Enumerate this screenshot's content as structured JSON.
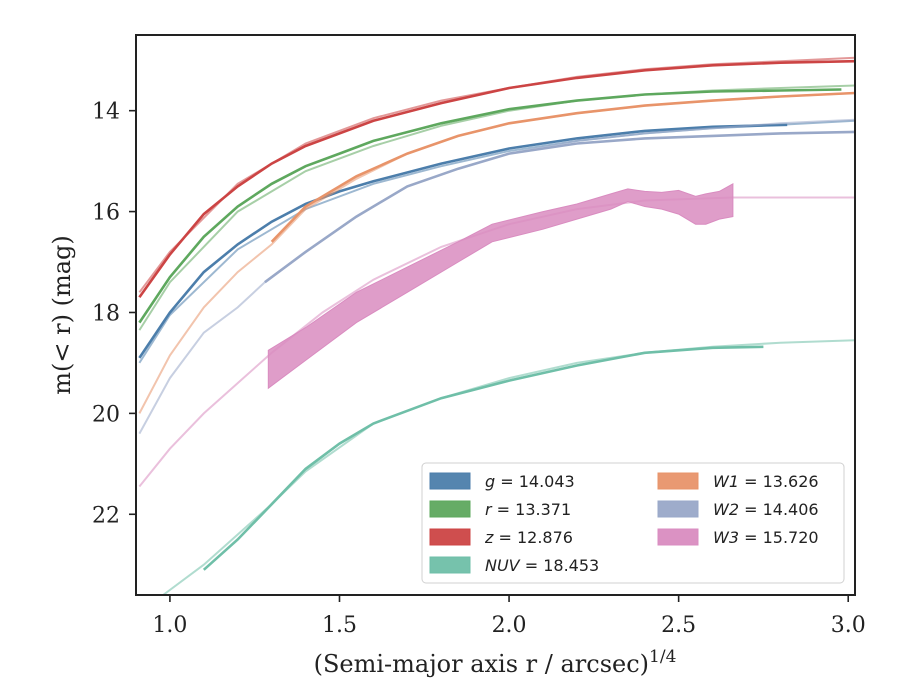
{
  "chart_data": {
    "type": "line",
    "xlabel": "(Semi-major axis r / arcsec)",
    "xlabel_sup": "1/4",
    "ylabel": "m(< r) (mag)",
    "xlim": [
      0.9,
      3.02
    ],
    "ylim": [
      23.6,
      12.5
    ],
    "y_inverted": true,
    "xticks": [
      "1.0",
      "1.5",
      "2.0",
      "2.5",
      "3.0"
    ],
    "xtick_values": [
      1.0,
      1.5,
      2.0,
      2.5,
      3.0
    ],
    "yticks": [
      "14",
      "16",
      "18",
      "20",
      "22"
    ],
    "ytick_values": [
      14,
      16,
      18,
      20,
      22
    ],
    "grid": false,
    "legend_placement": "lower-right",
    "series": [
      {
        "name": "g = 14.043",
        "color": "#4c7eab",
        "kind": "line",
        "data_x": [
          0.91,
          1.0,
          1.1,
          1.2,
          1.3,
          1.4,
          1.5,
          1.6,
          1.8,
          2.0,
          2.2,
          2.4,
          2.6,
          2.82
        ],
        "data_y": [
          18.9,
          18.0,
          17.2,
          16.65,
          16.2,
          15.85,
          15.6,
          15.4,
          15.05,
          14.75,
          14.55,
          14.4,
          14.32,
          14.28
        ],
        "model_x": [
          0.91,
          1.0,
          1.2,
          1.4,
          1.6,
          1.8,
          2.0,
          2.2,
          2.4,
          2.6,
          2.8,
          3.02
        ],
        "model_y": [
          19.0,
          18.05,
          16.75,
          15.95,
          15.45,
          15.1,
          14.8,
          14.6,
          14.45,
          14.35,
          14.28,
          14.2
        ]
      },
      {
        "name": "r = 13.371",
        "color": "#5ea85e",
        "kind": "line",
        "data_x": [
          0.91,
          1.0,
          1.1,
          1.2,
          1.3,
          1.4,
          1.5,
          1.6,
          1.8,
          2.0,
          2.2,
          2.4,
          2.6,
          2.8,
          2.98
        ],
        "data_y": [
          18.2,
          17.3,
          16.5,
          15.9,
          15.45,
          15.1,
          14.85,
          14.6,
          14.25,
          13.97,
          13.8,
          13.68,
          13.62,
          13.6,
          13.58
        ],
        "model_x": [
          0.91,
          1.0,
          1.2,
          1.4,
          1.6,
          1.8,
          2.0,
          2.2,
          2.4,
          2.6,
          2.8,
          3.02
        ],
        "model_y": [
          18.35,
          17.4,
          16.0,
          15.2,
          14.7,
          14.3,
          14.0,
          13.8,
          13.68,
          13.6,
          13.55,
          13.5
        ]
      },
      {
        "name": "z = 12.876",
        "color": "#cc4444",
        "kind": "line",
        "data_x": [
          0.91,
          1.0,
          1.1,
          1.2,
          1.3,
          1.4,
          1.5,
          1.6,
          1.8,
          2.0,
          2.2,
          2.4,
          2.6,
          2.8,
          3.02
        ],
        "data_y": [
          17.7,
          16.85,
          16.05,
          15.5,
          15.05,
          14.7,
          14.45,
          14.2,
          13.85,
          13.55,
          13.35,
          13.2,
          13.1,
          13.05,
          13.02
        ],
        "model_x": [
          0.91,
          1.0,
          1.2,
          1.4,
          1.6,
          1.8,
          2.0,
          2.2,
          2.4,
          2.6,
          2.8,
          3.02
        ],
        "model_y": [
          17.6,
          16.8,
          15.45,
          14.65,
          14.15,
          13.8,
          13.55,
          13.33,
          13.18,
          13.08,
          13.02,
          12.95
        ]
      },
      {
        "name": "NUV = 18.453",
        "color": "#6fbfa8",
        "kind": "line",
        "data_x": [
          1.1,
          1.2,
          1.3,
          1.4,
          1.5,
          1.6,
          1.8,
          2.0,
          2.2,
          2.4,
          2.6,
          2.75
        ],
        "data_y": [
          23.1,
          22.5,
          21.8,
          21.1,
          20.6,
          20.2,
          19.7,
          19.35,
          19.05,
          18.8,
          18.7,
          18.68
        ],
        "model_x": [
          0.98,
          1.1,
          1.2,
          1.3,
          1.4,
          1.6,
          1.8,
          2.0,
          2.2,
          2.4,
          2.6,
          2.8,
          3.02
        ],
        "model_y": [
          23.6,
          23.0,
          22.4,
          21.8,
          21.15,
          20.2,
          19.7,
          19.3,
          19.0,
          18.8,
          18.68,
          18.6,
          18.55
        ]
      },
      {
        "name": "W1 = 13.626",
        "color": "#e8946a",
        "kind": "line",
        "data_x": [
          1.3,
          1.4,
          1.55,
          1.7,
          1.85,
          2.0,
          2.2,
          2.4,
          2.6,
          2.8,
          3.02
        ],
        "data_y": [
          16.6,
          15.9,
          15.3,
          14.85,
          14.5,
          14.25,
          14.05,
          13.9,
          13.8,
          13.72,
          13.65
        ],
        "model_x": [
          0.91,
          1.0,
          1.1,
          1.2,
          1.3,
          1.4,
          1.55,
          1.7,
          1.85,
          2.0,
          2.2,
          2.4,
          2.6,
          2.8,
          3.02
        ],
        "model_y": [
          20.0,
          18.85,
          17.9,
          17.2,
          16.65,
          15.95,
          15.35,
          14.85,
          14.5,
          14.25,
          14.05,
          13.9,
          13.8,
          13.72,
          13.65
        ]
      },
      {
        "name": "W2 = 14.406",
        "color": "#99a8c8",
        "kind": "line",
        "data_x": [
          1.28,
          1.4,
          1.55,
          1.7,
          1.85,
          2.0,
          2.2,
          2.4,
          2.6,
          2.8,
          3.02
        ],
        "data_y": [
          17.4,
          16.8,
          16.1,
          15.5,
          15.15,
          14.85,
          14.65,
          14.55,
          14.5,
          14.45,
          14.42
        ],
        "model_x": [
          0.91,
          1.0,
          1.1,
          1.2,
          1.28,
          1.4,
          1.55,
          1.7,
          1.85,
          2.0,
          2.2,
          2.4,
          2.6,
          2.8,
          3.02
        ],
        "model_y": [
          20.4,
          19.3,
          18.4,
          17.9,
          17.4,
          16.8,
          16.1,
          15.5,
          15.15,
          14.85,
          14.6,
          14.45,
          14.35,
          14.25,
          14.18
        ]
      },
      {
        "name": "W3 = 15.720",
        "color": "#d98cc0",
        "kind": "band",
        "band_x": [
          1.29,
          1.4,
          1.55,
          1.7,
          1.85,
          1.95,
          2.1,
          2.2,
          2.3,
          2.35,
          2.4,
          2.45,
          2.5,
          2.55,
          2.58,
          2.62,
          2.66
        ],
        "band_lo": [
          18.75,
          18.3,
          17.6,
          17.1,
          16.6,
          16.25,
          16.0,
          15.85,
          15.65,
          15.55,
          15.6,
          15.62,
          15.58,
          15.7,
          15.65,
          15.6,
          15.45
        ],
        "band_hi": [
          19.5,
          18.95,
          18.2,
          17.6,
          17.0,
          16.6,
          16.35,
          16.15,
          15.95,
          15.8,
          15.9,
          15.95,
          16.05,
          16.25,
          16.25,
          16.15,
          16.1
        ],
        "model_x": [
          0.91,
          1.0,
          1.1,
          1.2,
          1.3,
          1.45,
          1.6,
          1.8,
          2.0,
          2.2,
          2.4,
          2.66,
          3.02
        ],
        "model_y": [
          21.45,
          20.7,
          20.0,
          19.4,
          18.8,
          18.0,
          17.35,
          16.7,
          16.25,
          15.95,
          15.78,
          15.72,
          15.72
        ]
      }
    ]
  }
}
